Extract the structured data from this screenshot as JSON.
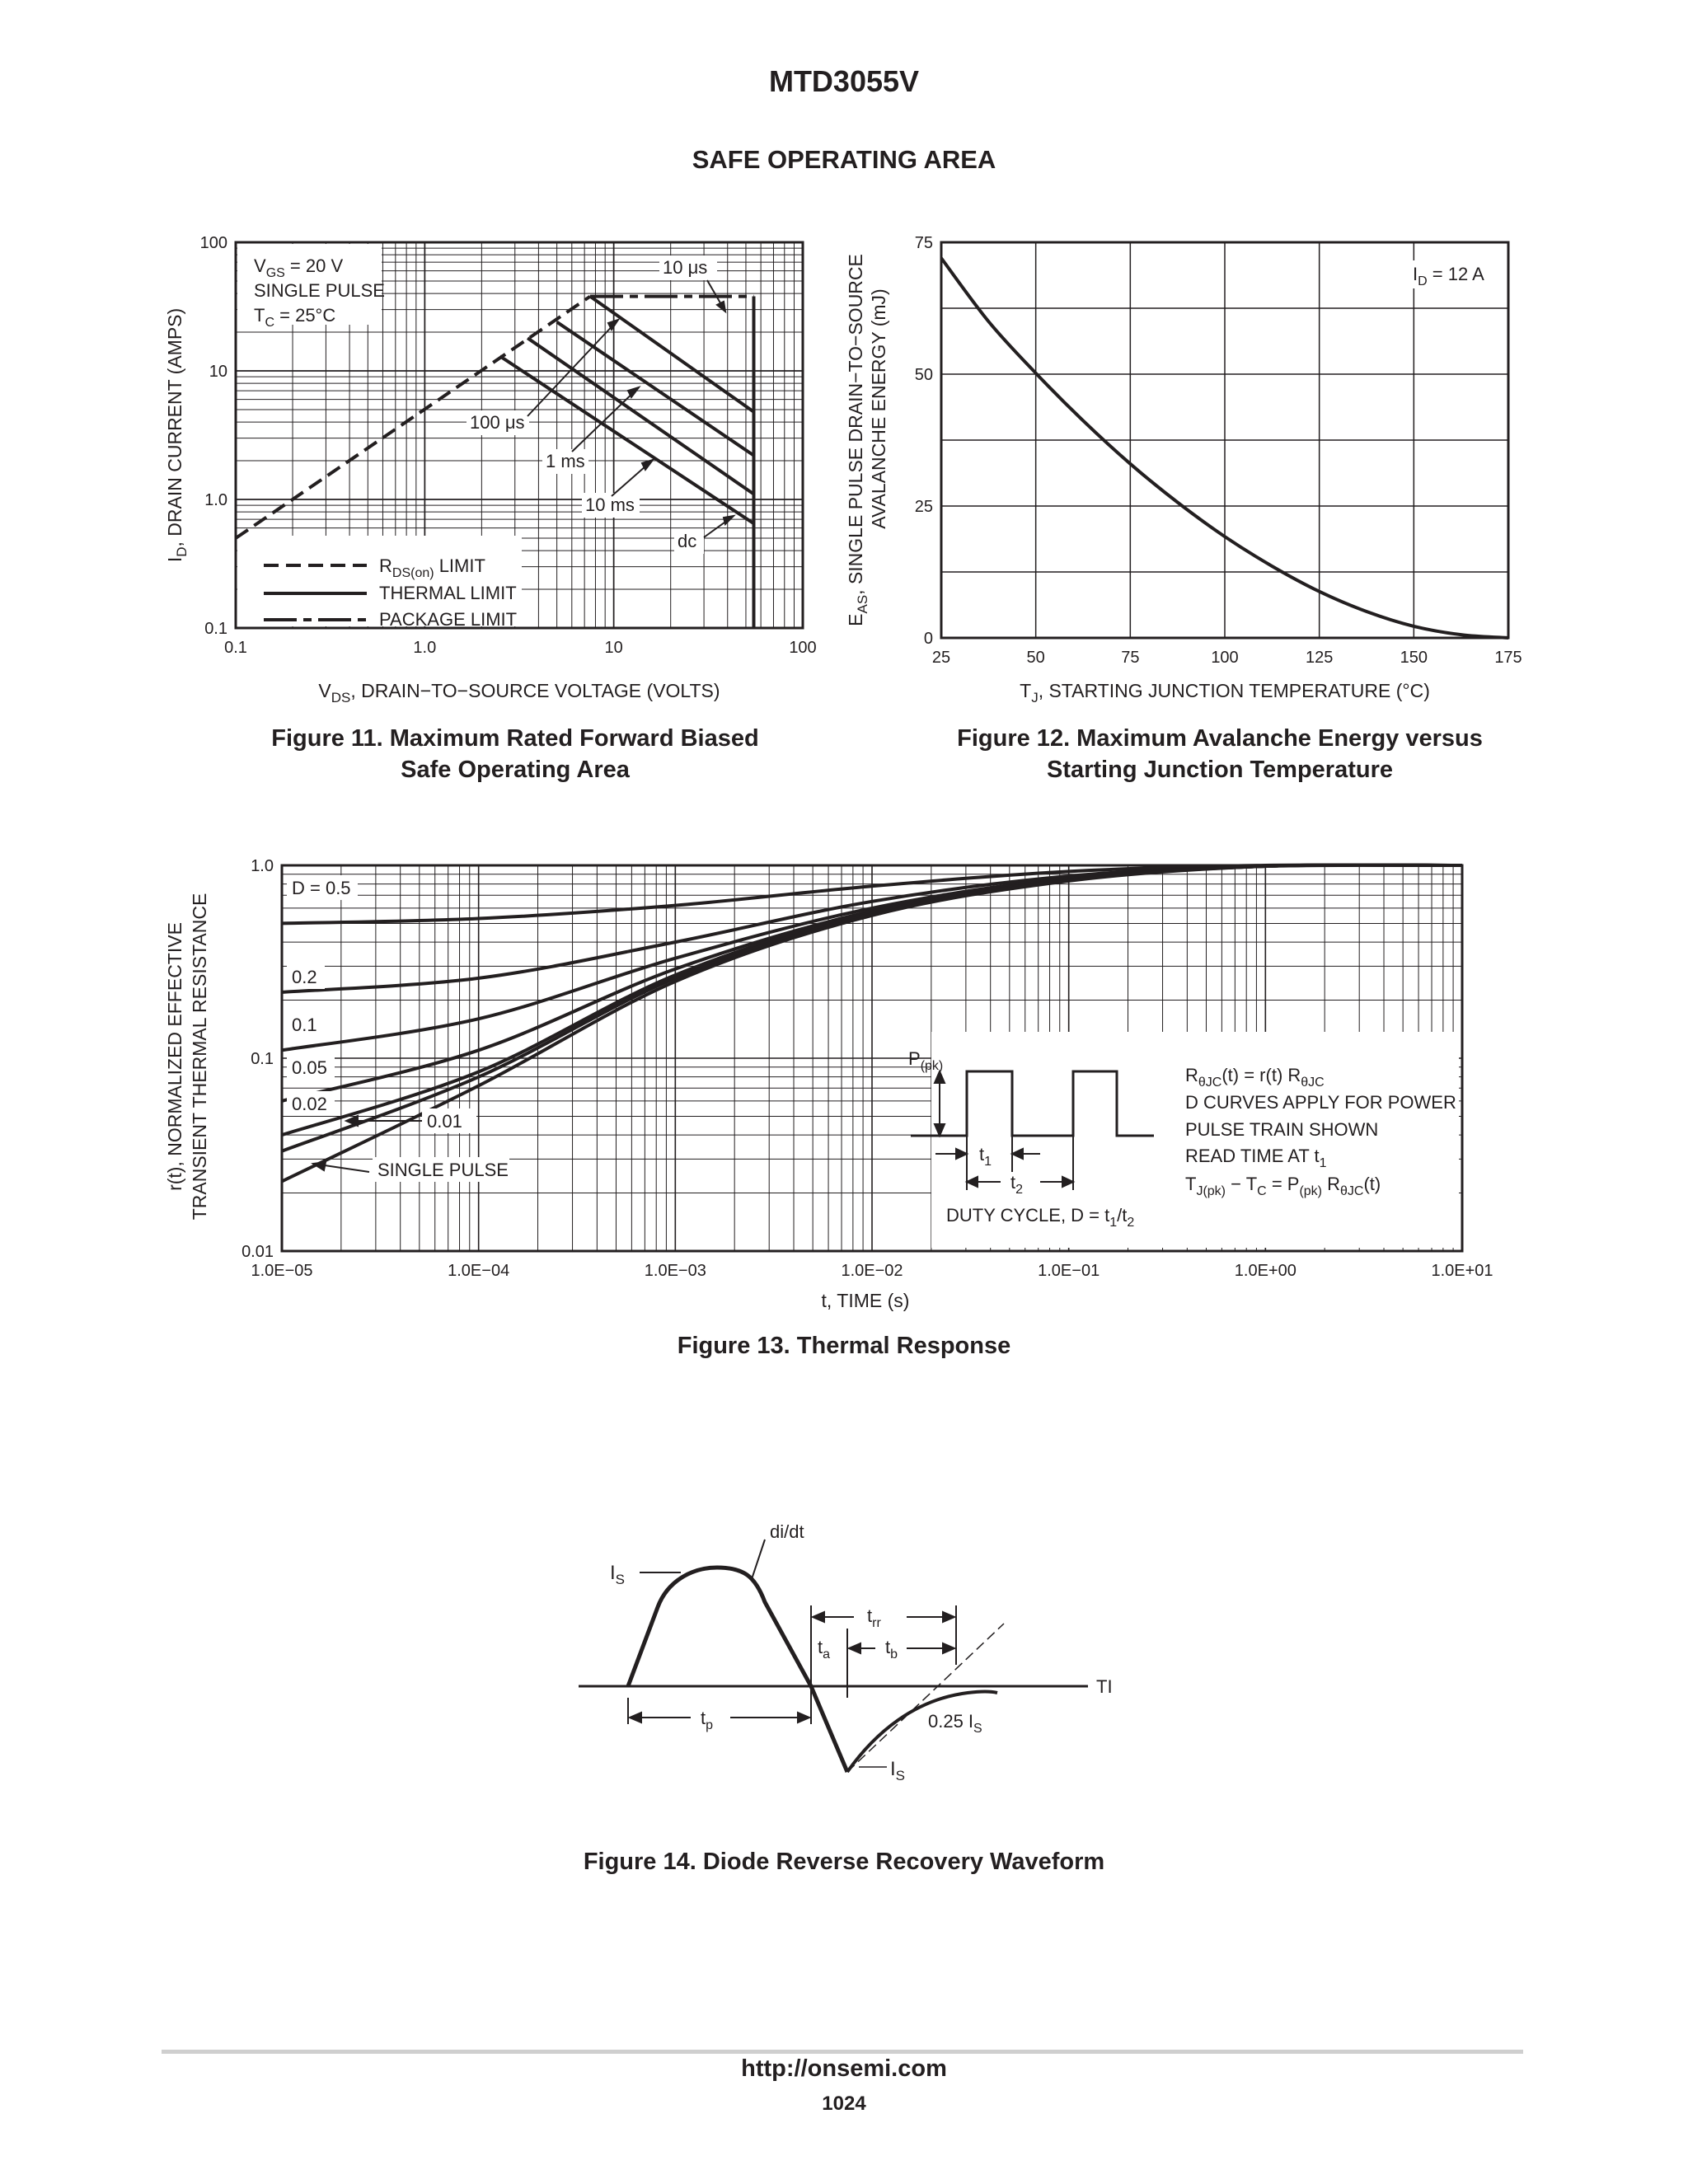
{
  "header": {
    "part_number": "MTD3055V",
    "section_title": "SAFE OPERATING AREA"
  },
  "fig11": {
    "caption_line1": "Figure 11. Maximum Rated Forward Biased",
    "caption_line2": "Safe Operating Area",
    "ylabel": "I",
    "ylabel_sub": "D",
    "ylabel_rest": ", DRAIN CURRENT (AMPS)",
    "xlabel": "V",
    "xlabel_sub": "DS",
    "xlabel_rest": ", DRAIN−TO−SOURCE VOLTAGE (VOLTS)",
    "conditions": {
      "vgs": "V",
      "vgs_sub": "GS",
      "vgs_rest": " = 20 V",
      "pulse": "SINGLE PULSE",
      "tc": "T",
      "tc_sub": "C",
      "tc_rest": " = 25°C"
    },
    "curve_labels": {
      "us10": "10 μs",
      "us100": "100 μs",
      "ms1": "1 ms",
      "ms10": "10 ms",
      "dc": "dc"
    },
    "legend": {
      "rds": "R",
      "rds_sub": "DS(on)",
      "rds_rest": " LIMIT",
      "thermal": "THERMAL LIMIT",
      "package": "PACKAGE LIMIT"
    },
    "chart_data": {
      "type": "line",
      "x_scale": "log",
      "y_scale": "log",
      "xlim": [
        0.1,
        100
      ],
      "ylim": [
        0.1,
        100
      ],
      "xticks": [
        "0.1",
        "1.0",
        "10",
        "100"
      ],
      "yticks": [
        "0.1",
        "1.0",
        "10",
        "100"
      ],
      "series": [
        {
          "name": "R_DS(on) LIMIT",
          "style": "dashed",
          "points": [
            [
              0.1,
              0.5
            ],
            [
              7.5,
              38
            ]
          ]
        },
        {
          "name": "PACKAGE LIMIT",
          "style": "dash-dot",
          "points": [
            [
              7.5,
              38
            ],
            [
              55,
              38
            ]
          ]
        },
        {
          "name": "THERMAL LIMIT 10 μs",
          "style": "solid",
          "points": [
            [
              55,
              38
            ],
            [
              55,
              18
            ]
          ]
        },
        {
          "name": "THERMAL LIMIT 100 μs",
          "style": "solid",
          "points": [
            [
              7.5,
              38
            ],
            [
              55,
              4.8
            ]
          ]
        },
        {
          "name": "THERMAL LIMIT 1 ms",
          "style": "solid",
          "points": [
            [
              5,
              24
            ],
            [
              55,
              2.2
            ]
          ]
        },
        {
          "name": "THERMAL LIMIT 10 ms",
          "style": "solid",
          "points": [
            [
              3.5,
              18
            ],
            [
              55,
              1.1
            ]
          ]
        },
        {
          "name": "THERMAL LIMIT dc",
          "style": "solid",
          "points": [
            [
              2.5,
              13
            ],
            [
              55,
              0.65
            ]
          ]
        },
        {
          "name": "V_DSS LIMIT",
          "style": "solid",
          "points": [
            [
              55,
              38
            ],
            [
              55,
              0.1
            ]
          ]
        }
      ]
    }
  },
  "fig12": {
    "caption_line1": "Figure 12. Maximum Avalanche Energy versus",
    "caption_line2": "Starting Junction Temperature",
    "ylabel_line1": "E",
    "ylabel_sub": "AS",
    "ylabel_rest": ", SINGLE PULSE DRAIN−TO−SOURCE",
    "ylabel_line2": "AVALANCHE ENERGY (mJ)",
    "xlabel": "T",
    "xlabel_sub": "J",
    "xlabel_rest": ", STARTING JUNCTION TEMPERATURE (°C)",
    "annotation": "I",
    "annotation_sub": "D",
    "annotation_rest": " = 12 A",
    "chart_data": {
      "type": "line",
      "xlim": [
        25,
        175
      ],
      "ylim": [
        0,
        75
      ],
      "xticks": [
        "25",
        "50",
        "75",
        "100",
        "125",
        "150",
        "175"
      ],
      "yticks": [
        "0",
        "25",
        "50",
        "75"
      ],
      "series": [
        {
          "x": [
            25,
            37.5,
            50,
            62.5,
            75,
            87.5,
            100,
            112.5,
            125,
            137.5,
            150,
            162.5,
            175
          ],
          "y": [
            72,
            60,
            50.2,
            41.2,
            33,
            25.7,
            19.2,
            13.6,
            8.8,
            5.0,
            2.2,
            0.6,
            0
          ]
        }
      ]
    }
  },
  "fig13": {
    "caption": "Figure 13. Thermal Response",
    "ylabel_line1": "r(t), NORMALIZED EFFECTIVE",
    "ylabel_line2": "TRANSIENT THERMAL RESISTANCE",
    "xlabel": "t, TIME (s)",
    "curve_labels": [
      "D = 0.5",
      "0.2",
      "0.1",
      "0.05",
      "0.02",
      "0.01",
      "SINGLE PULSE"
    ],
    "inset": {
      "ppk": "P",
      "ppk_sub": "(pk)",
      "t1": "t",
      "t1_sub": "1",
      "t2": "t",
      "t2_sub": "2",
      "duty": "DUTY CYCLE, D = t",
      "duty_sub1": "1",
      "duty_mid": "/t",
      "duty_sub2": "2",
      "note1": "R",
      "note1_sub": "θJC",
      "note1_rest": "(t) = r(t) R",
      "note1_sub2": "θJC",
      "note2": "D CURVES APPLY FOR POWER",
      "note3": "PULSE TRAIN SHOWN",
      "note4": "READ TIME AT t",
      "note4_sub": "1",
      "note5_a": "T",
      "note5_sub1": "J(pk)",
      "note5_b": " − T",
      "note5_sub2": "C",
      "note5_c": " = P",
      "note5_sub3": "(pk)",
      "note5_d": " R",
      "note5_sub4": "θJC",
      "note5_e": "(t)"
    },
    "chart_data": {
      "type": "line",
      "x_scale": "log",
      "y_scale": "log",
      "xlim": [
        1e-05,
        10
      ],
      "ylim": [
        0.01,
        1.0
      ],
      "xticks": [
        "1.0E−05",
        "1.0E−04",
        "1.0E−03",
        "1.0E−02",
        "1.0E−01",
        "1.0E+00",
        "1.0E+01"
      ],
      "yticks": [
        "0.01",
        "0.1",
        "1.0"
      ],
      "series": [
        {
          "name": "D = 0.5",
          "x": [
            1e-05,
            0.0001,
            0.001,
            0.01,
            0.1,
            1,
            10
          ],
          "y": [
            0.5,
            0.53,
            0.62,
            0.78,
            0.93,
            1.0,
            1.0
          ]
        },
        {
          "name": "0.2",
          "x": [
            1e-05,
            0.0001,
            0.001,
            0.01,
            0.1,
            1,
            10
          ],
          "y": [
            0.22,
            0.26,
            0.4,
            0.65,
            0.88,
            0.99,
            1.0
          ]
        },
        {
          "name": "0.1",
          "x": [
            1e-05,
            0.0001,
            0.001,
            0.01,
            0.1,
            1,
            10
          ],
          "y": [
            0.11,
            0.16,
            0.33,
            0.6,
            0.86,
            0.99,
            1.0
          ]
        },
        {
          "name": "0.05",
          "x": [
            1e-05,
            0.0001,
            0.001,
            0.01,
            0.1,
            1,
            10
          ],
          "y": [
            0.06,
            0.11,
            0.29,
            0.58,
            0.85,
            0.99,
            1.0
          ]
        },
        {
          "name": "0.02",
          "x": [
            1e-05,
            0.0001,
            0.001,
            0.01,
            0.1,
            1,
            10
          ],
          "y": [
            0.04,
            0.085,
            0.27,
            0.57,
            0.84,
            0.99,
            1.0
          ]
        },
        {
          "name": "0.01",
          "x": [
            1e-05,
            0.0001,
            0.001,
            0.01,
            0.1,
            1,
            10
          ],
          "y": [
            0.033,
            0.08,
            0.26,
            0.56,
            0.84,
            0.99,
            1.0
          ]
        },
        {
          "name": "SINGLE PULSE",
          "x": [
            1e-05,
            0.0001,
            0.001,
            0.01,
            0.1,
            1,
            10
          ],
          "y": [
            0.023,
            0.072,
            0.25,
            0.55,
            0.83,
            0.99,
            1.0
          ]
        }
      ]
    }
  },
  "fig14": {
    "caption": "Figure 14. Diode Reverse Recovery Waveform",
    "didt": "di/dt",
    "is_top": "I",
    "is_top_sub": "S",
    "trr": "t",
    "trr_sub": "rr",
    "ta": "t",
    "ta_sub": "a",
    "tb": "t",
    "tb_sub": "b",
    "time": "TIME",
    "tp": "t",
    "tp_sub": "p",
    "quarter": "0.25 I",
    "quarter_sub": "S",
    "is_bottom": "I",
    "is_bottom_sub": "S"
  },
  "footer": {
    "url": "http://onsemi.com",
    "page": "1024"
  }
}
